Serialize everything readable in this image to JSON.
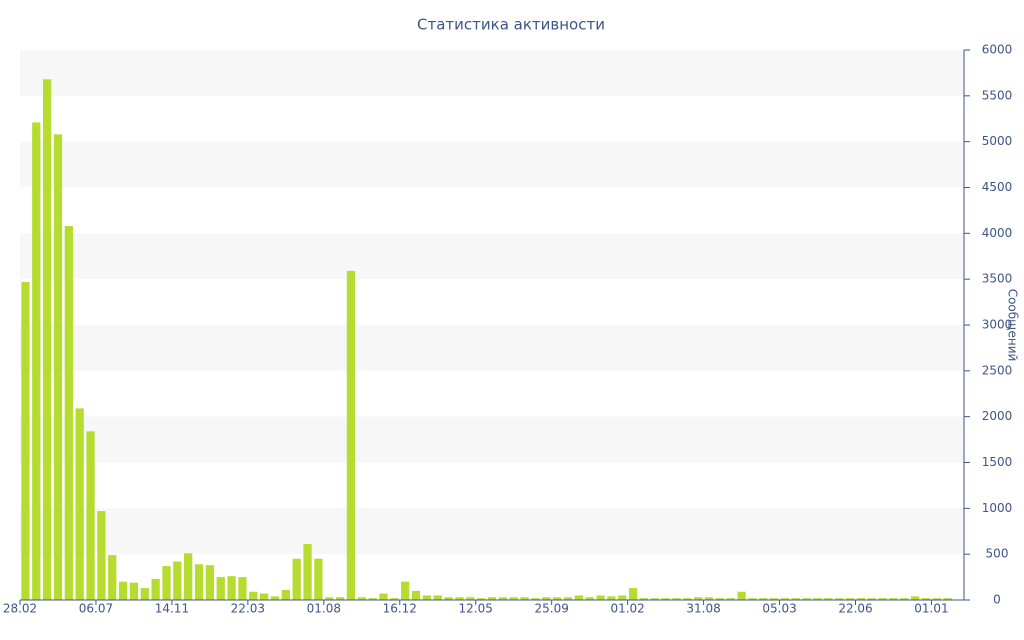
{
  "chart_data": {
    "type": "bar",
    "title": "Статистика активности",
    "y_label": "Сообщений",
    "categories": [
      "28.02",
      null,
      null,
      null,
      null,
      null,
      null,
      "06.07",
      null,
      null,
      null,
      null,
      null,
      null,
      "14.11",
      null,
      null,
      null,
      null,
      null,
      null,
      "22.03",
      null,
      null,
      null,
      null,
      null,
      null,
      "01.08",
      null,
      null,
      null,
      null,
      null,
      null,
      "16.12",
      null,
      null,
      null,
      null,
      null,
      null,
      "12.05",
      null,
      null,
      null,
      null,
      null,
      null,
      "25.09",
      null,
      null,
      null,
      null,
      null,
      null,
      "01.02",
      null,
      null,
      null,
      null,
      null,
      null,
      "31.08",
      null,
      null,
      null,
      null,
      null,
      null,
      "05.03",
      null,
      null,
      null,
      null,
      null,
      null,
      "22.06",
      null,
      null,
      null,
      null,
      null,
      null,
      "01.01",
      null
    ],
    "values": [
      3470,
      5210,
      5680,
      5080,
      4080,
      2090,
      1840,
      970,
      490,
      200,
      190,
      130,
      230,
      370,
      420,
      510,
      390,
      380,
      250,
      260,
      250,
      90,
      70,
      40,
      110,
      450,
      610,
      450,
      30,
      30,
      3590,
      30,
      20,
      70,
      20,
      200,
      100,
      50,
      50,
      30,
      30,
      30,
      20,
      30,
      30,
      30,
      30,
      20,
      30,
      30,
      30,
      50,
      30,
      50,
      40,
      50,
      130,
      20,
      20,
      20,
      20,
      20,
      30,
      30,
      20,
      20,
      90,
      20,
      20,
      20,
      20,
      20,
      20,
      20,
      20,
      20,
      20,
      20,
      20,
      20,
      20,
      20,
      40,
      20,
      20,
      20
    ],
    "color": "#b5dc2f",
    "ylim": [
      0,
      6000
    ],
    "yticks": [
      0,
      500,
      1000,
      1500,
      2000,
      2500,
      3000,
      3500,
      4000,
      4500,
      5000,
      5500,
      6000
    ],
    "y_axis_side": "right",
    "grid_bands": true
  }
}
